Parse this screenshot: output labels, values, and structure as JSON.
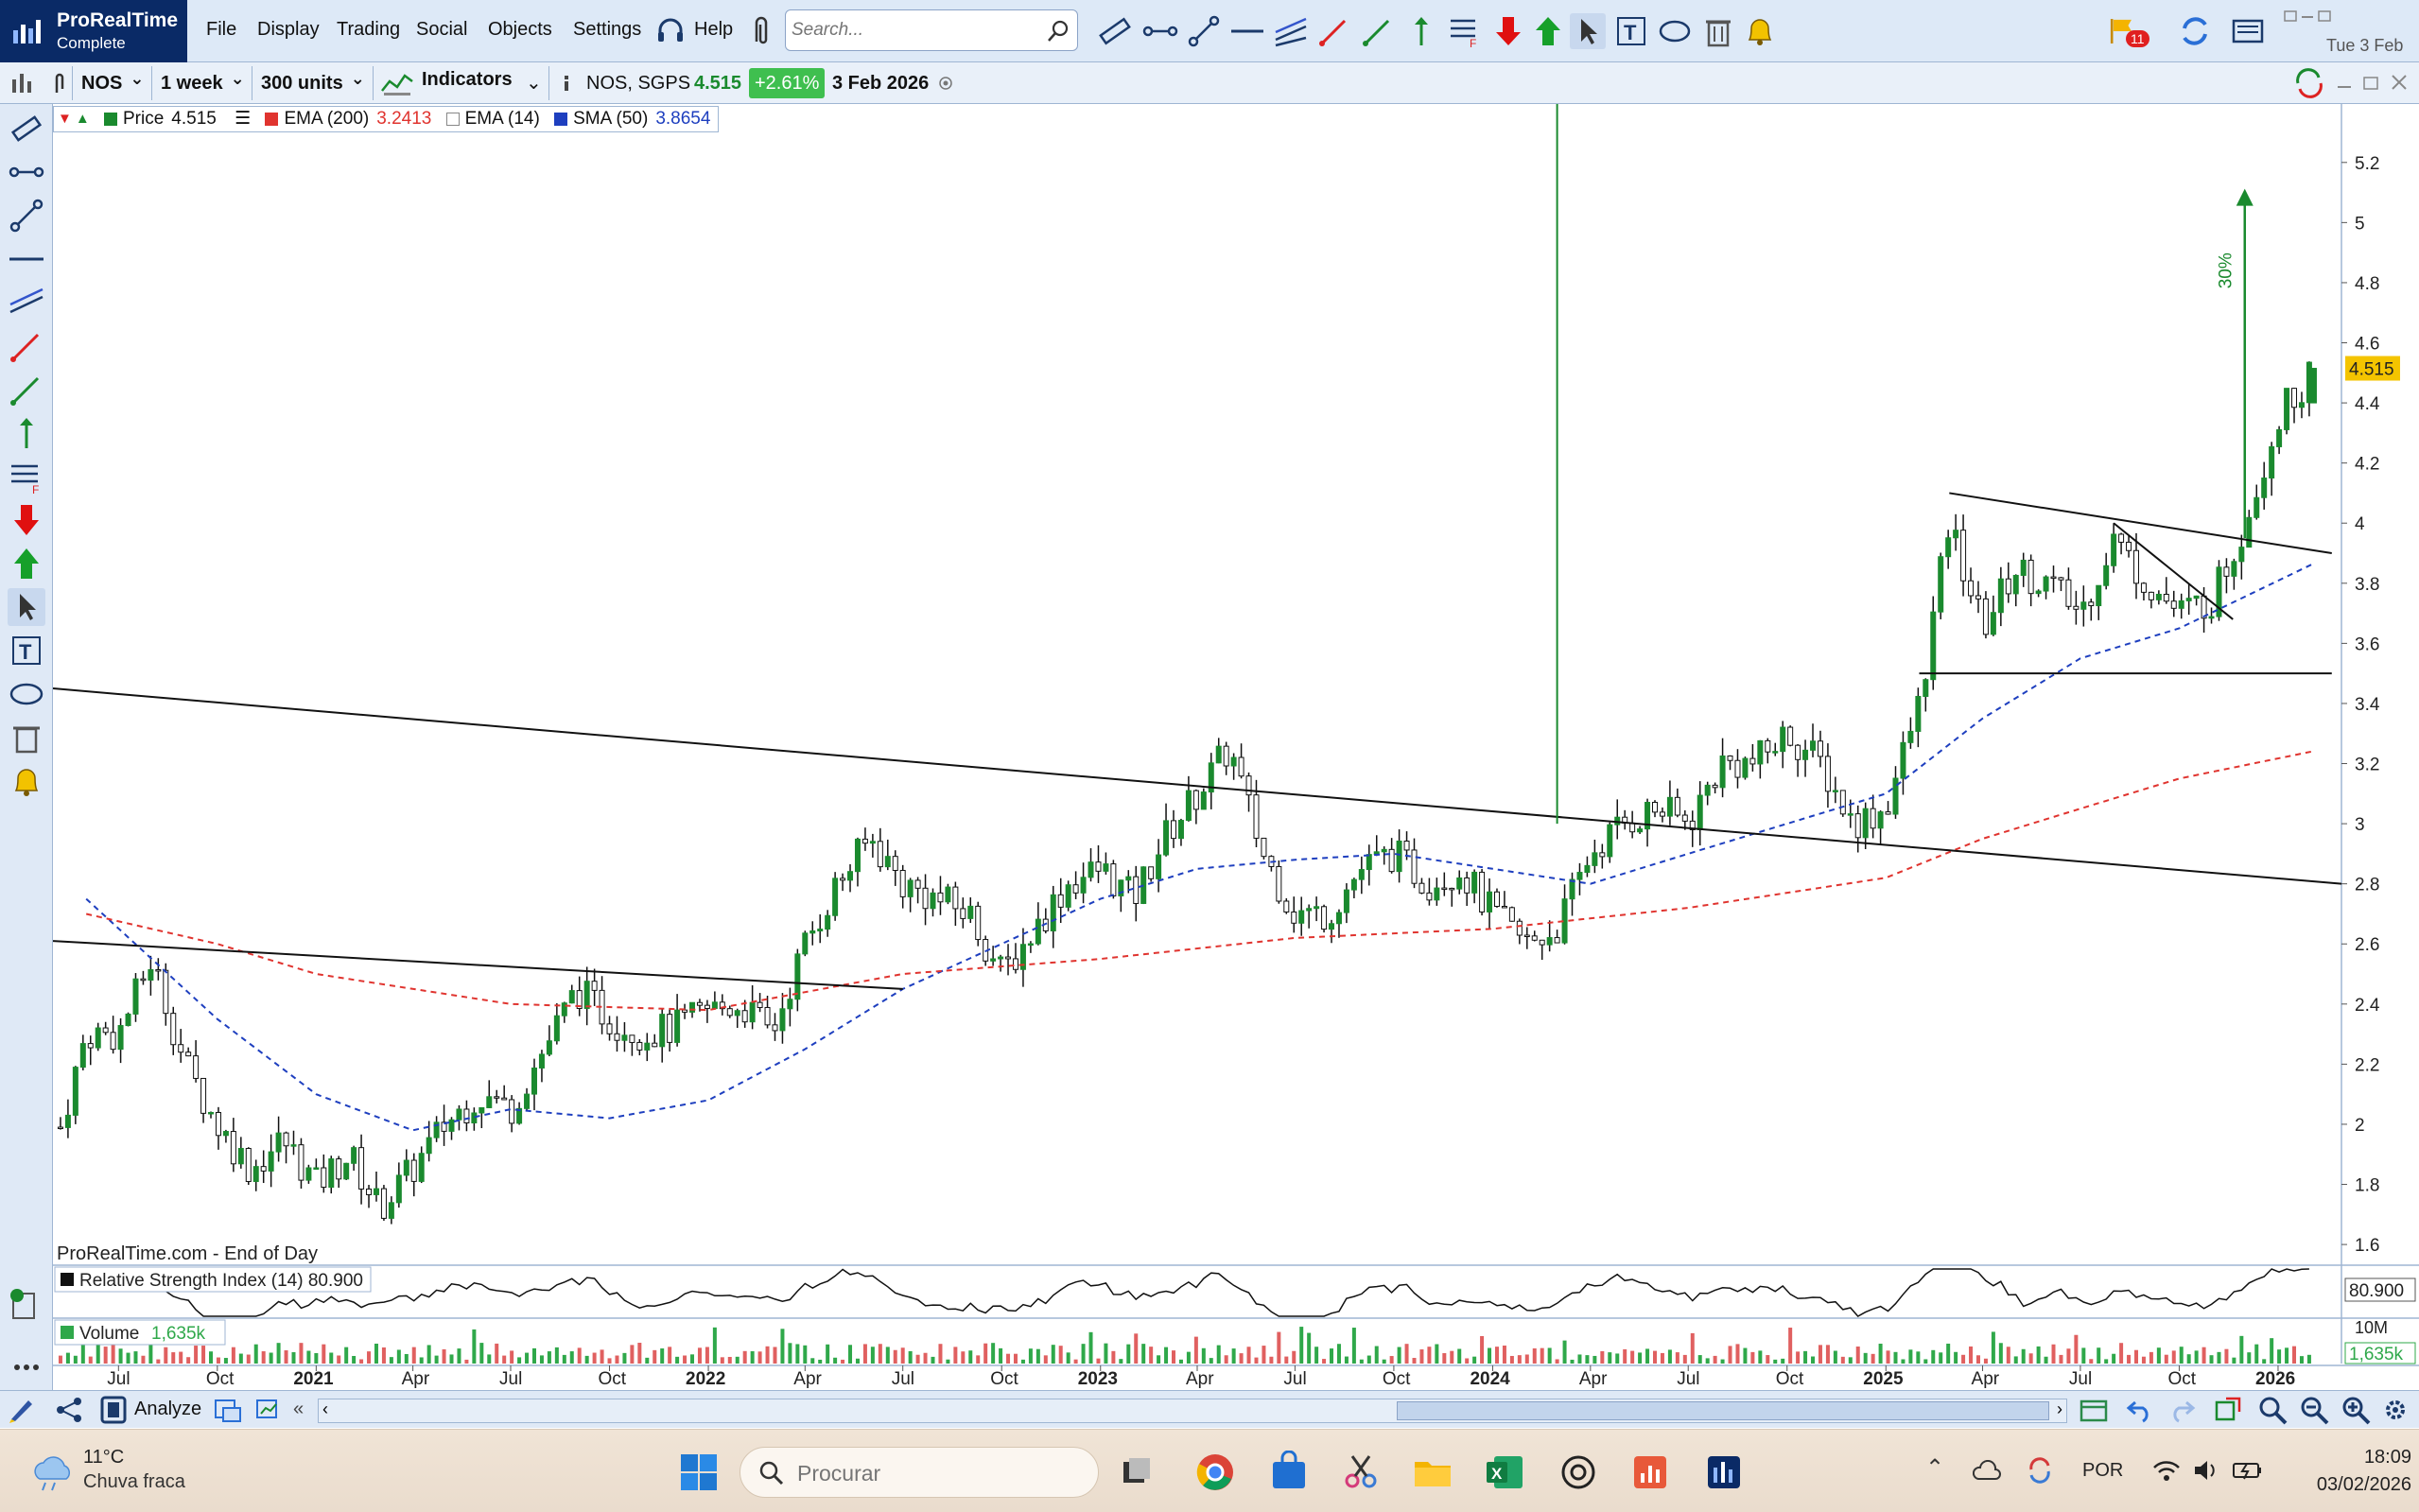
{
  "app": {
    "brand_name": "ProRealTime",
    "brand_edition": "Complete",
    "menus": [
      "File",
      "Display",
      "Trading",
      "Social",
      "Objects",
      "Settings",
      "Help"
    ],
    "search_placeholder": "Search...",
    "notifications_count": "11",
    "top_date": "Tue 3 Feb"
  },
  "toolbar2": {
    "ticker": "NOS",
    "timeframe": "1 week",
    "units": "300 units",
    "indicators_label": "Indicators",
    "instrument": "NOS, SGPS",
    "last_price": "4.515",
    "change": "+2.61%",
    "date": "3 Feb 2026"
  },
  "legend": {
    "price_label": "Price",
    "price_value": "4.515",
    "ema200_label": "EMA (200)",
    "ema200_value": "3.2413",
    "ema14_label": "EMA (14)",
    "sma50_label": "SMA (50)",
    "sma50_value": "3.8654"
  },
  "colors": {
    "candle_up": "#1a8a2e",
    "ema200": "#e0342f",
    "sma50": "#1e3fbf",
    "trend_vertical": "#1a8a2e",
    "price_tag": "#f4c400"
  },
  "source_label": "ProRealTime.com - End of Day",
  "annotation_percent": "30%",
  "rsi": {
    "label": "Relative Strength Index (14)",
    "value": "80.900"
  },
  "volume": {
    "label": "Volume",
    "value": "1,635k",
    "axis_label": "10M"
  },
  "bottom": {
    "analyze_label": "Analyze"
  },
  "taskbar": {
    "temperature": "11°C",
    "condition": "Chuva fraca",
    "search_placeholder": "Procurar",
    "language": "POR",
    "time": "18:09",
    "date": "03/02/2026"
  },
  "chart_data": {
    "type": "candlestick",
    "y_ticks": [
      1.6,
      1.8,
      2.0,
      2.2,
      2.4,
      2.6,
      2.8,
      3.0,
      3.2,
      3.4,
      3.6,
      3.8,
      4.0,
      4.2,
      4.4,
      4.6,
      4.8,
      5.0,
      5.2
    ],
    "ylim": [
      1.55,
      5.3
    ],
    "x_ticks": [
      "Jul",
      "Oct",
      "2021",
      "Apr",
      "Jul",
      "Oct",
      "2022",
      "Apr",
      "Jul",
      "Oct",
      "2023",
      "Apr",
      "Jul",
      "Oct",
      "2024",
      "Apr",
      "Jul",
      "Oct",
      "2025",
      "Apr",
      "Jul",
      "Oct",
      "2026"
    ],
    "x_tick_dates": [
      "2020-07-01",
      "2020-10-01",
      "2021-01-01",
      "2021-04-01",
      "2021-07-01",
      "2021-10-01",
      "2022-01-01",
      "2022-04-01",
      "2022-07-01",
      "2022-10-01",
      "2023-01-01",
      "2023-04-01",
      "2023-07-01",
      "2023-10-01",
      "2024-01-01",
      "2024-04-01",
      "2024-07-01",
      "2024-10-01",
      "2025-01-01",
      "2025-04-01",
      "2025-07-01",
      "2025-10-01",
      "2026-01-01"
    ],
    "price_path": [
      [
        "2020-05-01",
        1.9
      ],
      [
        "2020-06-01",
        2.3
      ],
      [
        "2020-07-01",
        2.3
      ],
      [
        "2020-08-01",
        2.55
      ],
      [
        "2020-09-01",
        2.2
      ],
      [
        "2020-10-01",
        2.0
      ],
      [
        "2020-11-01",
        1.85
      ],
      [
        "2020-12-01",
        1.95
      ],
      [
        "2021-01-01",
        1.8
      ],
      [
        "2021-02-01",
        1.9
      ],
      [
        "2021-03-01",
        1.72
      ],
      [
        "2021-04-01",
        1.85
      ],
      [
        "2021-05-01",
        2.0
      ],
      [
        "2021-06-01",
        2.1
      ],
      [
        "2021-07-01",
        2.05
      ],
      [
        "2021-08-01",
        2.25
      ],
      [
        "2021-09-01",
        2.45
      ],
      [
        "2021-10-01",
        2.35
      ],
      [
        "2021-11-01",
        2.3
      ],
      [
        "2021-12-01",
        2.32
      ],
      [
        "2022-01-01",
        2.38
      ],
      [
        "2022-02-01",
        2.4
      ],
      [
        "2022-03-01",
        2.3
      ],
      [
        "2022-04-01",
        2.6
      ],
      [
        "2022-05-01",
        2.8
      ],
      [
        "2022-06-01",
        2.95
      ],
      [
        "2022-07-01",
        2.8
      ],
      [
        "2022-08-01",
        2.75
      ],
      [
        "2022-09-01",
        2.7
      ],
      [
        "2022-10-01",
        2.5
      ],
      [
        "2022-11-01",
        2.65
      ],
      [
        "2022-12-01",
        2.8
      ],
      [
        "2023-01-01",
        2.85
      ],
      [
        "2023-02-01",
        2.75
      ],
      [
        "2023-03-01",
        2.95
      ],
      [
        "2023-04-01",
        3.1
      ],
      [
        "2023-05-01",
        3.25
      ],
      [
        "2023-06-01",
        2.9
      ],
      [
        "2023-07-01",
        2.7
      ],
      [
        "2023-08-01",
        2.7
      ],
      [
        "2023-09-01",
        2.85
      ],
      [
        "2023-10-01",
        2.9
      ],
      [
        "2023-11-01",
        2.8
      ],
      [
        "2023-12-01",
        2.85
      ],
      [
        "2024-01-01",
        2.7
      ],
      [
        "2024-02-01",
        2.6
      ],
      [
        "2024-03-01",
        2.65
      ],
      [
        "2024-04-01",
        2.9
      ],
      [
        "2024-05-01",
        3.0
      ],
      [
        "2024-06-01",
        3.05
      ],
      [
        "2024-07-01",
        3.0
      ],
      [
        "2024-08-01",
        3.2
      ],
      [
        "2024-09-01",
        3.2
      ],
      [
        "2024-10-01",
        3.3
      ],
      [
        "2024-11-01",
        3.2
      ],
      [
        "2024-12-01",
        3.0
      ],
      [
        "2025-01-01",
        3.05
      ],
      [
        "2025-02-01",
        3.4
      ],
      [
        "2025-03-01",
        4.0
      ],
      [
        "2025-04-01",
        3.65
      ],
      [
        "2025-05-01",
        3.85
      ],
      [
        "2025-06-01",
        3.8
      ],
      [
        "2025-07-01",
        3.7
      ],
      [
        "2025-08-01",
        3.95
      ],
      [
        "2025-09-01",
        3.8
      ],
      [
        "2025-10-01",
        3.7
      ],
      [
        "2025-11-01",
        3.75
      ],
      [
        "2025-12-01",
        4.0
      ],
      [
        "2026-01-01",
        4.35
      ],
      [
        "2026-02-03",
        4.515
      ]
    ],
    "sma50_path": [
      [
        "2020-06-01",
        2.75
      ],
      [
        "2020-10-01",
        2.35
      ],
      [
        "2021-01-01",
        2.1
      ],
      [
        "2021-04-01",
        1.98
      ],
      [
        "2021-07-01",
        2.05
      ],
      [
        "2021-10-01",
        2.02
      ],
      [
        "2022-01-01",
        2.08
      ],
      [
        "2022-04-01",
        2.25
      ],
      [
        "2022-07-01",
        2.45
      ],
      [
        "2022-10-01",
        2.6
      ],
      [
        "2023-01-01",
        2.75
      ],
      [
        "2023-04-01",
        2.85
      ],
      [
        "2023-07-01",
        2.88
      ],
      [
        "2023-10-01",
        2.9
      ],
      [
        "2024-01-01",
        2.85
      ],
      [
        "2024-04-01",
        2.8
      ],
      [
        "2024-07-01",
        2.9
      ],
      [
        "2024-10-01",
        3.0
      ],
      [
        "2025-01-01",
        3.1
      ],
      [
        "2025-04-01",
        3.35
      ],
      [
        "2025-07-01",
        3.55
      ],
      [
        "2025-10-01",
        3.65
      ],
      [
        "2026-02-03",
        3.8654
      ]
    ],
    "ema200_path": [
      [
        "2020-06-01",
        2.7
      ],
      [
        "2020-10-01",
        2.6
      ],
      [
        "2021-01-01",
        2.5
      ],
      [
        "2021-07-01",
        2.4
      ],
      [
        "2022-01-01",
        2.38
      ],
      [
        "2022-07-01",
        2.5
      ],
      [
        "2023-01-01",
        2.55
      ],
      [
        "2023-07-01",
        2.62
      ],
      [
        "2024-01-01",
        2.65
      ],
      [
        "2024-07-01",
        2.72
      ],
      [
        "2025-01-01",
        2.82
      ],
      [
        "2025-04-01",
        2.95
      ],
      [
        "2025-07-01",
        3.05
      ],
      [
        "2025-10-01",
        3.15
      ],
      [
        "2026-02-03",
        3.2413
      ]
    ],
    "trendlines": [
      {
        "from": [
          "2020-05-01",
          3.45
        ],
        "to": [
          "2026-03-01",
          2.8
        ]
      },
      {
        "from": [
          "2020-05-01",
          2.61
        ],
        "to": [
          "2022-07-01",
          2.45
        ]
      },
      {
        "from": [
          "2025-03-01",
          4.1
        ],
        "to": [
          "2026-02-20",
          3.9
        ]
      },
      {
        "from": [
          "2025-02-01",
          3.5
        ],
        "to": [
          "2026-02-20",
          3.5
        ]
      },
      {
        "from": [
          "2025-08-01",
          4.0
        ],
        "to": [
          "2025-11-20",
          3.68
        ]
      }
    ],
    "vertical_line_date": "2024-03-01",
    "arrow": {
      "date": "2025-12-01",
      "from": 3.95,
      "to": 5.1
    },
    "rsi_last": 80.9,
    "volume_last": "1,635k"
  }
}
